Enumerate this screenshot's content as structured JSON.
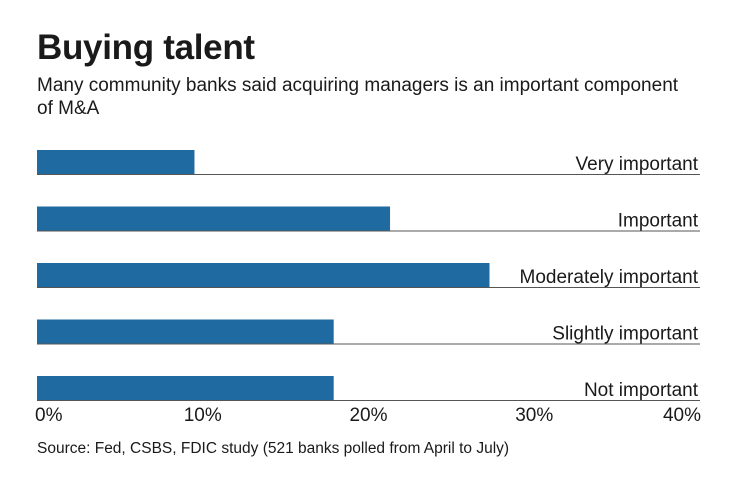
{
  "header": {
    "title": "Buying talent",
    "subtitle": "Many community banks said acquiring managers is an important component of M&A"
  },
  "source": "Source: Fed, CSBS, FDIC study (521 banks polled from April to July)",
  "colors": {
    "bar": "#1f6aa1",
    "rule": "#555555",
    "text": "#1a1a1a"
  },
  "chart_data": {
    "type": "bar",
    "orientation": "horizontal",
    "title": "Buying talent",
    "subtitle": "Many community banks said acquiring managers is an important component of M&A",
    "categories": [
      "Very important",
      "Important",
      "Moderately important",
      "Slightly important",
      "Not important"
    ],
    "values": [
      9.5,
      21.3,
      27.3,
      17.9,
      17.9
    ],
    "units": "%",
    "xlim": [
      0,
      40
    ],
    "xticks": [
      0,
      10,
      20,
      30,
      40
    ],
    "xtick_labels": [
      "0%",
      "10%",
      "20%",
      "30%",
      "40%"
    ],
    "xlabel": "",
    "ylabel": "",
    "grid": false,
    "legend": "none"
  }
}
